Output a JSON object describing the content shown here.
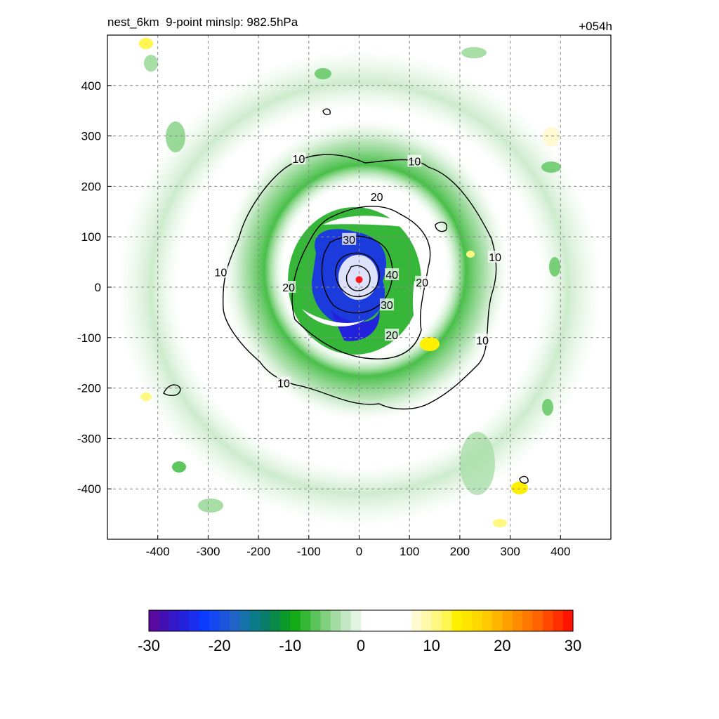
{
  "header": {
    "title": "nest_6km  9-point minslp: 982.5hPa",
    "forecast_hour": "+054h"
  },
  "chart_data": {
    "type": "heatmap",
    "x_ticks": [
      -400,
      -300,
      -200,
      -100,
      0,
      100,
      200,
      300,
      400
    ],
    "y_ticks": [
      400,
      300,
      200,
      100,
      0,
      -100,
      -200,
      -300,
      -400
    ],
    "xlim": [
      -500,
      500
    ],
    "ylim": [
      -500,
      500
    ],
    "grid": true,
    "center_marker": {
      "x": 0,
      "y": 15,
      "color": "#ff1a1a"
    },
    "contour_levels": [
      10,
      20,
      30,
      40
    ],
    "contour_labels": [
      {
        "text": "10",
        "x": -120,
        "y": 255
      },
      {
        "text": "10",
        "x": 110,
        "y": 250
      },
      {
        "text": "10",
        "x": 270,
        "y": 60
      },
      {
        "text": "10",
        "x": 245,
        "y": -105
      },
      {
        "text": "10",
        "x": -275,
        "y": 30
      },
      {
        "text": "10",
        "x": -150,
        "y": -190
      },
      {
        "text": "20",
        "x": 35,
        "y": 180
      },
      {
        "text": "20",
        "x": -140,
        "y": 0
      },
      {
        "text": "20",
        "x": 125,
        "y": 10
      },
      {
        "text": "20",
        "x": 65,
        "y": -95
      },
      {
        "text": "30",
        "x": -20,
        "y": 95
      },
      {
        "text": "30",
        "x": 55,
        "y": -35
      },
      {
        "text": "40",
        "x": 65,
        "y": 25
      }
    ],
    "colorbar": {
      "min": -30,
      "max": 30,
      "tick_labels": [
        "-30",
        "-20",
        "-10",
        "0",
        "10",
        "20",
        "30"
      ],
      "colors": [
        "#5a0aa0",
        "#4410b4",
        "#3218c8",
        "#2222dc",
        "#1a2ef0",
        "#0a3cff",
        "#1448f0",
        "#1c55dc",
        "#2064c8",
        "#1672a8",
        "#0a7c8a",
        "#087e6a",
        "#0a8a48",
        "#0c9a2a",
        "#14aa18",
        "#34b834",
        "#5ac45a",
        "#80d080",
        "#a4dca4",
        "#c4e8c4",
        "#e0f4e0",
        "#ffffff",
        "#ffffff",
        "#ffffff",
        "#ffffff",
        "#ffffff",
        "#fffad2",
        "#fff8aa",
        "#fff880",
        "#fff650",
        "#fff000",
        "#ffe600",
        "#ffd800",
        "#ffc800",
        "#ffb400",
        "#ffa000",
        "#ff8c00",
        "#ff7800",
        "#ff6400",
        "#ff4a00",
        "#ff3000",
        "#ff1400"
      ]
    }
  }
}
